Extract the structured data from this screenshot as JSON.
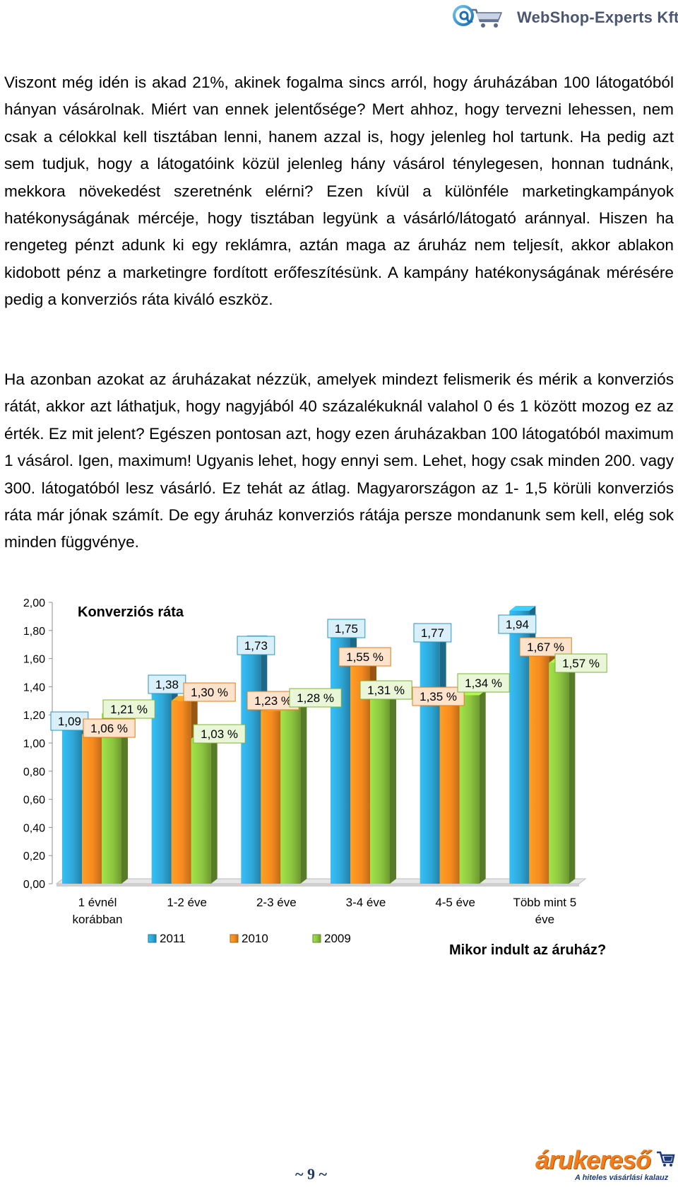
{
  "header": {
    "brand": "WebShop-Experts Kft.",
    "icon": "shopping-cart-at-logo"
  },
  "paragraphs": [
    "Viszont még idén is akad 21%, akinek fogalma sincs arról, hogy áruházában 100 látogatóból hányan vásárolnak. Miért van ennek jelentősége? Mert ahhoz, hogy tervezni lehessen, nem csak a célokkal kell tisztában lenni, hanem azzal is, hogy jelenleg hol tartunk. Ha pedig azt sem tudjuk, hogy a látogatóink közül jelenleg hány vásárol ténylegesen, honnan tudnánk, mekkora növekedést szeretnénk elérni? Ezen kívül a különféle marketingkampányok hatékonyságának mércéje, hogy tisztában legyünk a vásárló/látogató aránnyal. Hiszen ha rengeteg pénzt adunk ki egy reklámra, aztán maga az áruház nem teljesít, akkor ablakon kidobott pénz a marketingre fordított erőfeszítésünk. A kampány hatékonyságának mérésére pedig a konverziós ráta kiváló eszköz.",
    "Ha azonban azokat az áruházakat nézzük, amelyek mindezt felismerik és mérik a konverziós rátát, akkor azt láthatjuk, hogy nagyjából 40 százalékuknál valahol 0 és 1 között mozog ez az érték. Ez mit jelent? Egészen pontosan azt, hogy ezen áruházakban 100 látogatóból maximum 1 vásárol. Igen, maximum! Ugyanis lehet, hogy ennyi sem. Lehet, hogy csak minden 200. vagy 300. látogatóból lesz vásárló. Ez tehát az átlag. Magyarországon az 1- 1,5 körüli konverziós ráta már jónak számít. De egy áruház konverziós rátája persze mondanunk sem kell, elég sok minden függvénye."
  ],
  "chart_data": {
    "type": "bar",
    "style": "3d-clustered-column",
    "title": "Konverziós ráta",
    "xlabel": "Mikor indult az áruház?",
    "ylabel": "",
    "ylim": [
      0,
      2
    ],
    "y_ticks": [
      "0,00",
      "0,20",
      "0,40",
      "0,60",
      "0,80",
      "1,00",
      "1,20",
      "1,40",
      "1,60",
      "1,80",
      "2,00"
    ],
    "categories": [
      [
        "1 évnél",
        "korábban"
      ],
      [
        "1-2 éve"
      ],
      [
        "2-3 éve"
      ],
      [
        "3-4 éve"
      ],
      [
        "4-5 éve"
      ],
      [
        "Több mint 5",
        "éve"
      ]
    ],
    "legend_position": "bottom-left",
    "series": [
      {
        "name": "2011",
        "color": "#2ea7d8",
        "values": [
          1.09,
          1.38,
          1.73,
          1.75,
          1.77,
          1.94
        ],
        "labels": [
          "1,09",
          "1,38",
          "1,73",
          "1,75",
          "1,77",
          "1,94"
        ],
        "label_fill": "#d9f0fa"
      },
      {
        "name": "2010",
        "color": "#f68a1f",
        "values": [
          1.06,
          1.3,
          1.23,
          1.55,
          1.35,
          1.67
        ],
        "labels": [
          "1,06 %",
          "1,30 %",
          "1,23 %",
          "1,55 %",
          "1,35 %",
          "1,67 %"
        ],
        "label_fill": "#fde2cc"
      },
      {
        "name": "2009",
        "color": "#8dc63f",
        "values": [
          1.21,
          1.03,
          1.28,
          1.31,
          1.34,
          1.57
        ],
        "labels": [
          "1,21 %",
          "1,03 %",
          "1,28 %",
          "1,31 %",
          "1,34 %",
          "1,57 %"
        ],
        "label_fill": "#e9f6d8"
      }
    ]
  },
  "footer": {
    "page_number": "~ 9 ~",
    "logo_name": "árukereső",
    "logo_tagline": "A hiteles vásárlási kalauz"
  }
}
